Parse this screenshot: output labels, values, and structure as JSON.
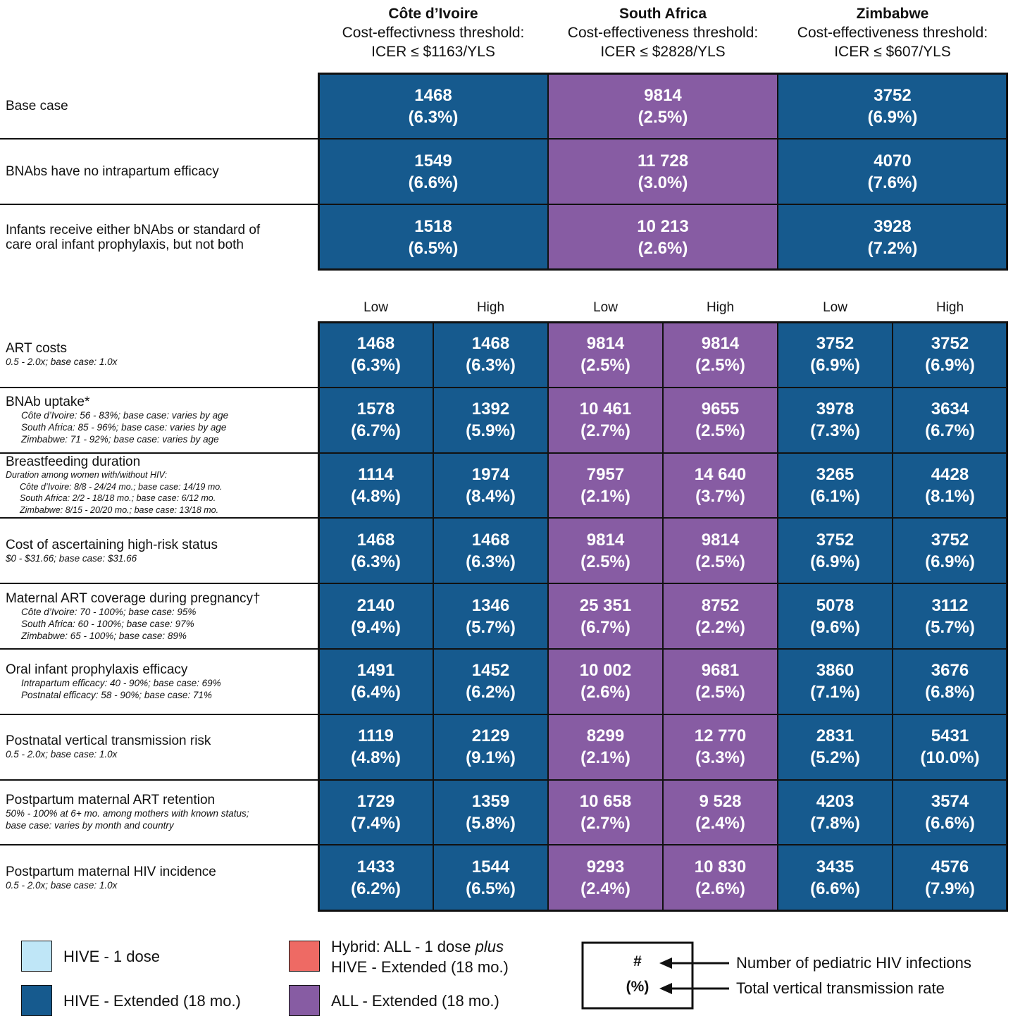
{
  "header": {
    "columns": [
      {
        "country": "Côte d’Ivoire",
        "threshold_label": "Cost-effectivness threshold:",
        "threshold": "ICER ≤ $1163/YLS"
      },
      {
        "country": "South Africa",
        "threshold_label": "Cost-effectiveness threshold:",
        "threshold": "ICER ≤ $2828/YLS"
      },
      {
        "country": "Zimbabwe",
        "threshold_label": "Cost-effectiveness threshold:",
        "threshold": "ICER ≤ $607/YLS"
      }
    ]
  },
  "top_table": {
    "rows": [
      {
        "label": "Base case",
        "cells": [
          {
            "count": "1468",
            "rate": "(6.3%)",
            "color": "#165a8e"
          },
          {
            "count": "9814",
            "rate": "(2.5%)",
            "color": "#875ca3"
          },
          {
            "count": "3752",
            "rate": "(6.9%)",
            "color": "#165a8e"
          }
        ]
      },
      {
        "label": "BNAbs have no intrapartum efficacy",
        "cells": [
          {
            "count": "1549",
            "rate": "(6.6%)",
            "color": "#165a8e"
          },
          {
            "count": "11 728",
            "rate": "(3.0%)",
            "color": "#875ca3"
          },
          {
            "count": "4070",
            "rate": "(7.6%)",
            "color": "#165a8e"
          }
        ]
      },
      {
        "label": "Infants receive either bNAbs or standard of care oral infant prophylaxis, but not both",
        "cells": [
          {
            "count": "1518",
            "rate": "(6.5%)",
            "color": "#165a8e"
          },
          {
            "count": "10 213",
            "rate": "(2.6%)",
            "color": "#875ca3"
          },
          {
            "count": "3928",
            "rate": "(7.2%)",
            "color": "#165a8e"
          }
        ]
      }
    ]
  },
  "sensitivity_table": {
    "levels": [
      "Low",
      "High",
      "Low",
      "High",
      "Low",
      "High"
    ],
    "rows": [
      {
        "label": "ART costs",
        "notes": [
          "0.5 - 2.0x; base case: 1.0x"
        ],
        "cells": [
          {
            "count": "1468",
            "rate": "(6.3%)",
            "color": "#165a8e"
          },
          {
            "count": "1468",
            "rate": "(6.3%)",
            "color": "#165a8e"
          },
          {
            "count": "9814",
            "rate": "(2.5%)",
            "color": "#875ca3"
          },
          {
            "count": "9814",
            "rate": "(2.5%)",
            "color": "#875ca3"
          },
          {
            "count": "3752",
            "rate": "(6.9%)",
            "color": "#165a8e"
          },
          {
            "count": "3752",
            "rate": "(6.9%)",
            "color": "#165a8e"
          }
        ]
      },
      {
        "label": "BNAb uptake*",
        "notes": [
          "Côte d’Ivoire: 56 - 83%; base case: varies by age",
          "South Africa: 85 - 96%; base case: varies by age",
          "Zimbabwe: 71 - 92%; base case: varies by age"
        ],
        "cells": [
          {
            "count": "1578",
            "rate": "(6.7%)",
            "color": "#165a8e"
          },
          {
            "count": "1392",
            "rate": "(5.9%)",
            "color": "#165a8e"
          },
          {
            "count": "10 461",
            "rate": "(2.7%)",
            "color": "#875ca3"
          },
          {
            "count": "9655",
            "rate": "(2.5%)",
            "color": "#875ca3"
          },
          {
            "count": "3978",
            "rate": "(7.3%)",
            "color": "#165a8e"
          },
          {
            "count": "3634",
            "rate": "(6.7%)",
            "color": "#165a8e"
          }
        ]
      },
      {
        "label": "Breastfeeding duration",
        "notes": [
          "Duration among women with/without HIV:",
          "Côte d’Ivoire: 8/8 - 24/24 mo.; base case: 14/19 mo.",
          "South Africa: 2/2 - 18/18 mo.; base case: 6/12 mo.",
          "Zimbabwe: 8/15 - 20/20 mo.; base case: 13/18 mo."
        ],
        "cells": [
          {
            "count": "1114",
            "rate": "(4.8%)",
            "color": "#165a8e"
          },
          {
            "count": "1974",
            "rate": "(8.4%)",
            "color": "#165a8e"
          },
          {
            "count": "7957",
            "rate": "(2.1%)",
            "color": "#875ca3"
          },
          {
            "count": "14 640",
            "rate": "(3.7%)",
            "color": "#875ca3"
          },
          {
            "count": "3265",
            "rate": "(6.1%)",
            "color": "#165a8e"
          },
          {
            "count": "4428",
            "rate": "(8.1%)",
            "color": "#165a8e"
          }
        ]
      },
      {
        "label": "Cost of ascertaining high-risk status",
        "notes": [
          "$0 - $31.66; base case: $31.66"
        ],
        "cells": [
          {
            "count": "1468",
            "rate": "(6.3%)",
            "color": "#165a8e"
          },
          {
            "count": "1468",
            "rate": "(6.3%)",
            "color": "#165a8e"
          },
          {
            "count": "9814",
            "rate": "(2.5%)",
            "color": "#875ca3"
          },
          {
            "count": "9814",
            "rate": "(2.5%)",
            "color": "#875ca3"
          },
          {
            "count": "3752",
            "rate": "(6.9%)",
            "color": "#165a8e"
          },
          {
            "count": "3752",
            "rate": "(6.9%)",
            "color": "#165a8e"
          }
        ]
      },
      {
        "label": "Maternal ART coverage during pregnancy†",
        "notes": [
          "Côte d’Ivoire: 70 - 100%; base case: 95%",
          "South Africa: 60 - 100%; base case: 97%",
          "Zimbabwe: 65 - 100%; base case: 89%"
        ],
        "cells": [
          {
            "count": "2140",
            "rate": "(9.4%)",
            "color": "#165a8e"
          },
          {
            "count": "1346",
            "rate": "(5.7%)",
            "color": "#165a8e"
          },
          {
            "count": "25 351",
            "rate": "(6.7%)",
            "color": "#875ca3"
          },
          {
            "count": "8752",
            "rate": "(2.2%)",
            "color": "#875ca3"
          },
          {
            "count": "5078",
            "rate": "(9.6%)",
            "color": "#165a8e"
          },
          {
            "count": "3112",
            "rate": "(5.7%)",
            "color": "#165a8e"
          }
        ]
      },
      {
        "label": "Oral infant prophylaxis efficacy",
        "notes": [
          "Intrapartum efficacy: 40 - 90%; base case: 69%",
          "Postnatal efficacy: 58 - 90%; base case: 71%"
        ],
        "cells": [
          {
            "count": "1491",
            "rate": "(6.4%)",
            "color": "#165a8e"
          },
          {
            "count": "1452",
            "rate": "(6.2%)",
            "color": "#165a8e"
          },
          {
            "count": "10 002",
            "rate": "(2.6%)",
            "color": "#875ca3"
          },
          {
            "count": "9681",
            "rate": "(2.5%)",
            "color": "#875ca3"
          },
          {
            "count": "3860",
            "rate": "(7.1%)",
            "color": "#165a8e"
          },
          {
            "count": "3676",
            "rate": "(6.8%)",
            "color": "#165a8e"
          }
        ]
      },
      {
        "label": "Postnatal vertical transmission risk",
        "notes": [
          "0.5 - 2.0x; base case: 1.0x"
        ],
        "cells": [
          {
            "count": "1119",
            "rate": "(4.8%)",
            "color": "#165a8e"
          },
          {
            "count": "2129",
            "rate": "(9.1%)",
            "color": "#165a8e"
          },
          {
            "count": "8299",
            "rate": "(2.1%)",
            "color": "#875ca3"
          },
          {
            "count": "12 770",
            "rate": "(3.3%)",
            "color": "#875ca3"
          },
          {
            "count": "2831",
            "rate": "(5.2%)",
            "color": "#165a8e"
          },
          {
            "count": "5431",
            "rate": "(10.0%)",
            "color": "#165a8e"
          }
        ]
      },
      {
        "label": "Postpartum maternal ART retention",
        "notes": [
          "50% - 100% at 6+ mo. among mothers with known status;",
          "base case: varies by month and country"
        ],
        "cells": [
          {
            "count": "1729",
            "rate": "(7.4%)",
            "color": "#165a8e"
          },
          {
            "count": "1359",
            "rate": "(5.8%)",
            "color": "#165a8e"
          },
          {
            "count": "10 658",
            "rate": "(2.7%)",
            "color": "#875ca3"
          },
          {
            "count": "9 528",
            "rate": "(2.4%)",
            "color": "#875ca3"
          },
          {
            "count": "4203",
            "rate": "(7.8%)",
            "color": "#165a8e"
          },
          {
            "count": "3574",
            "rate": "(6.6%)",
            "color": "#165a8e"
          }
        ]
      },
      {
        "label": "Postpartum maternal HIV incidence",
        "notes": [
          "0.5 - 2.0x; base case: 1.0x"
        ],
        "cells": [
          {
            "count": "1433",
            "rate": "(6.2%)",
            "color": "#165a8e"
          },
          {
            "count": "1544",
            "rate": "(6.5%)",
            "color": "#165a8e"
          },
          {
            "count": "9293",
            "rate": "(2.4%)",
            "color": "#875ca3"
          },
          {
            "count": "10 830",
            "rate": "(2.6%)",
            "color": "#875ca3"
          },
          {
            "count": "3435",
            "rate": "(6.6%)",
            "color": "#165a8e"
          },
          {
            "count": "4576",
            "rate": "(7.9%)",
            "color": "#165a8e"
          }
        ]
      }
    ]
  },
  "legend": {
    "items": [
      {
        "label": [
          "HIVE - 1 dose"
        ],
        "color": "#bfe6f7"
      },
      {
        "label": [
          "HIVE - Extended (18 mo.)"
        ],
        "color": "#165a8e"
      },
      {
        "label": [
          "Hybrid: ALL - 1 dose ",
          "plus",
          " HIVE - Extended (18 mo.)"
        ],
        "color": "#ee6a64"
      },
      {
        "label": [
          "ALL - Extended (18 mo.)"
        ],
        "color": "#875ca3"
      }
    ]
  },
  "key": {
    "count_symbol": "#",
    "rate_symbol": "(%)",
    "count_text": "Number of pediatric HIV infections",
    "rate_text": "Total vertical transmission rate"
  }
}
